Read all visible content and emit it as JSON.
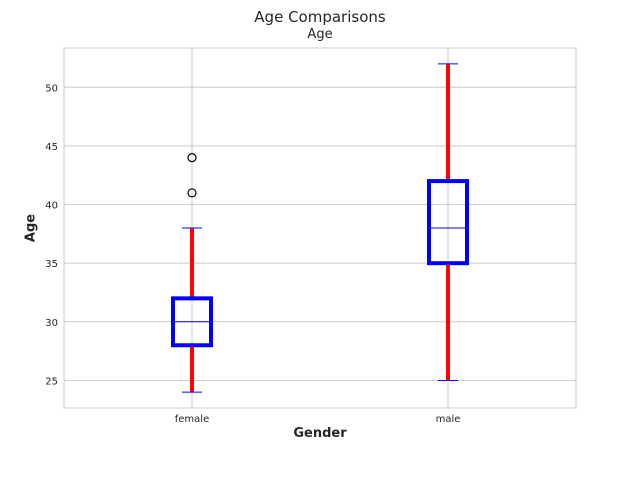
{
  "chart_data": {
    "type": "box",
    "suptitle": "Age Comparisons",
    "title": "Age",
    "xlabel": "Gender",
    "ylabel": "Age",
    "categories": [
      "female",
      "male"
    ],
    "ylim": [
      22.65,
      53.35
    ],
    "yticks": [
      25,
      30,
      35,
      40,
      45,
      50
    ],
    "grid": true,
    "boxes": [
      {
        "category": "female",
        "whisker_low": 24,
        "q1": 28,
        "median": 30,
        "q3": 32,
        "whisker_high": 38,
        "outliers": [
          41,
          44
        ]
      },
      {
        "category": "male",
        "whisker_low": 25,
        "q1": 35,
        "median": 38,
        "q3": 42,
        "whisker_high": 52,
        "outliers": []
      }
    ],
    "colors": {
      "box": "#0000ff",
      "median": "#0000ff",
      "whisker": "#ff0000",
      "cap": "#0000ff",
      "grid": "#cccccc",
      "spine": "#cccccc",
      "outlier_edge": "#000000"
    }
  }
}
